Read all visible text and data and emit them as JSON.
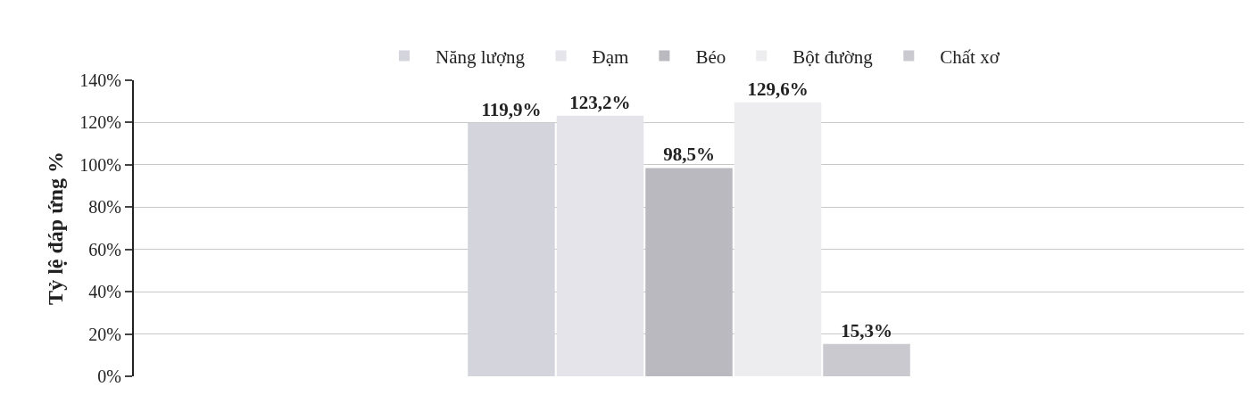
{
  "chart_data": {
    "type": "bar",
    "ylabel": "Tỷ lệ đáp ứng %",
    "categories": [
      null
    ],
    "series": [
      {
        "name": "Năng lượng",
        "color": "#d4d4dc",
        "values": [
          119.9
        ],
        "value_labels": [
          "119,9%"
        ]
      },
      {
        "name": "Đạm",
        "color": "#e4e4ea",
        "values": [
          123.2
        ],
        "value_labels": [
          "123,2%"
        ]
      },
      {
        "name": "Béo",
        "color": "#b9b9bf",
        "values": [
          98.5
        ],
        "value_labels": [
          "98,5%"
        ]
      },
      {
        "name": "Bột đường",
        "color": "#ededf0",
        "values": [
          129.6
        ],
        "value_labels": [
          "129,6%"
        ]
      },
      {
        "name": "Chất xơ",
        "color": "#c9c9cf",
        "values": [
          15.3
        ],
        "value_labels": [
          "15,3%"
        ]
      }
    ],
    "ylim": [
      0,
      140
    ],
    "yticks": [
      {
        "value": 0,
        "label": "0%"
      },
      {
        "value": 20,
        "label": "20%"
      },
      {
        "value": 40,
        "label": "40%"
      },
      {
        "value": 60,
        "label": "60%"
      },
      {
        "value": 80,
        "label": "80%"
      },
      {
        "value": 100,
        "label": "100%"
      },
      {
        "value": 120,
        "label": "120%"
      },
      {
        "value": 140,
        "label": "140%"
      }
    ],
    "grid": "y",
    "legend": "top"
  }
}
